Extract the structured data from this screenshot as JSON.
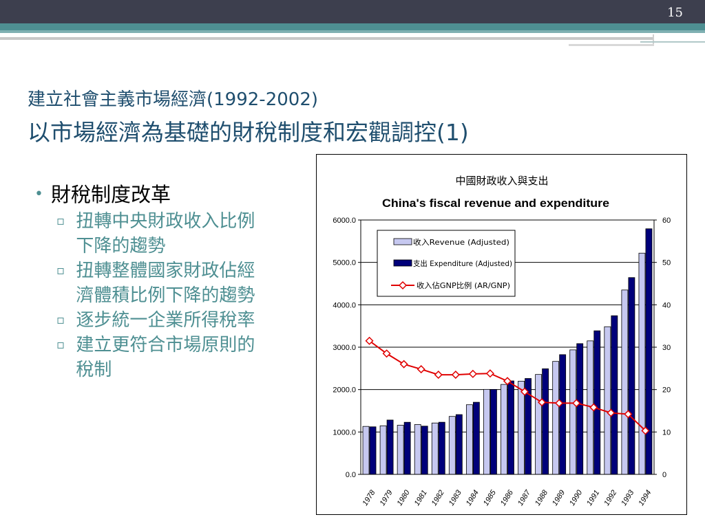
{
  "slide": {
    "page_number": "15",
    "title_line1": "建立社會主義市場經濟(1992-2002)",
    "title_line2": "以市場經濟為基礎的財稅制度和宏觀調控(1)"
  },
  "bullets": {
    "main": "財稅制度改革",
    "subs": [
      {
        "line1": "扭轉中央財政收入比例",
        "line2": "下降的趨勢"
      },
      {
        "line1": "扭轉整體國家財政佔經",
        "line2": "濟體積比例下降的趨勢"
      },
      {
        "line1": "逐步統一企業所得稅率",
        "line2": ""
      },
      {
        "line1": "建立更符合市場原則的",
        "line2": "稅制"
      }
    ]
  },
  "chart_data": {
    "type": "bar",
    "title": "中國財政收入與支出",
    "subtitle": "China's fiscal revenue and expenditure",
    "categories": [
      "1978",
      "1979",
      "1980",
      "1981",
      "1982",
      "1983",
      "1984",
      "1985",
      "1986",
      "1987",
      "1988",
      "1989",
      "1990",
      "1991",
      "1992",
      "1993",
      "1994"
    ],
    "series": [
      {
        "name": "收入Revenue (Adjusted)",
        "kind": "bar",
        "axis": "left",
        "color": "#c6c8f0",
        "values": [
          1132,
          1146,
          1160,
          1176,
          1212,
          1367,
          1643,
          2005,
          2122,
          2199,
          2357,
          2665,
          2937,
          3149,
          3483,
          4349,
          5218
        ]
      },
      {
        "name": "支出 Expenditure (Adjusted)",
        "kind": "bar",
        "axis": "left",
        "color": "#00007a",
        "values": [
          1122,
          1282,
          1229,
          1138,
          1230,
          1410,
          1701,
          2004,
          2205,
          2262,
          2491,
          2824,
          3084,
          3387,
          3742,
          4642,
          5793
        ]
      },
      {
        "name": "收入佔GNP比例 (AR/GNP)",
        "kind": "line",
        "axis": "right",
        "color": "#e00000",
        "values": [
          31.5,
          28.5,
          26,
          24.8,
          23.5,
          23.5,
          23.7,
          23.8,
          22.0,
          19.5,
          17.0,
          16.8,
          16.8,
          15.8,
          14.5,
          14.2,
          10.3
        ]
      }
    ],
    "y_left": {
      "min": 0,
      "max": 6000,
      "ticks": [
        "0.0",
        "1000.0",
        "2000.0",
        "3000.0",
        "4000.0",
        "5000.0",
        "6000.0"
      ]
    },
    "y_right": {
      "min": 0,
      "max": 60,
      "ticks": [
        "0",
        "10",
        "20",
        "30",
        "40",
        "50",
        "60"
      ]
    },
    "grid": true,
    "legend": "top-left"
  }
}
